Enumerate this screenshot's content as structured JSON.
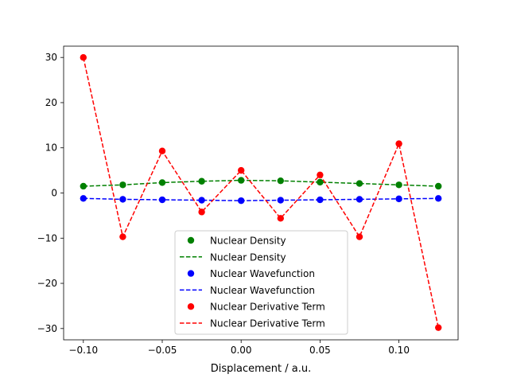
{
  "chart_data": {
    "type": "line",
    "title": "",
    "xlabel": "Displacement / a.u.",
    "ylabel": "",
    "xlim": [
      -0.1125,
      0.1375
    ],
    "ylim": [
      -32.5,
      32.5
    ],
    "grid": false,
    "legend_placement": "lower-center",
    "x_ticks": [
      -0.1,
      -0.05,
      0.0,
      0.05,
      0.1
    ],
    "x_tick_labels": [
      "−0.10",
      "−0.05",
      "0.00",
      "0.05",
      "0.10"
    ],
    "y_ticks": [
      30,
      20,
      10,
      0,
      -10,
      -20,
      -30
    ],
    "y_tick_labels": [
      "30",
      "20",
      "10",
      "0",
      "−10",
      "−20",
      "−30"
    ],
    "x": [
      -0.1,
      -0.075,
      -0.05,
      -0.025,
      0.0,
      0.025,
      0.05,
      0.075,
      0.1,
      0.125
    ],
    "series": [
      {
        "name": "Nuclear Density",
        "color": "#008000",
        "values": [
          1.5,
          1.8,
          2.3,
          2.6,
          2.8,
          2.7,
          2.4,
          2.1,
          1.8,
          1.5
        ]
      },
      {
        "name": "Nuclear Wavefunction",
        "color": "#0000ff",
        "values": [
          -1.2,
          -1.4,
          -1.5,
          -1.6,
          -1.7,
          -1.6,
          -1.5,
          -1.4,
          -1.3,
          -1.2
        ]
      },
      {
        "name": "Nuclear Derivative Term",
        "color": "#ff0000",
        "values": [
          30.0,
          -9.7,
          9.3,
          -4.2,
          5.0,
          -5.6,
          4.0,
          -9.7,
          10.9,
          -29.8
        ]
      }
    ],
    "legend_entries": [
      {
        "label": "Nuclear Density",
        "color": "#008000",
        "style": "marker"
      },
      {
        "label": "Nuclear Density",
        "color": "#008000",
        "style": "dashed"
      },
      {
        "label": "Nuclear Wavefunction",
        "color": "#0000ff",
        "style": "marker"
      },
      {
        "label": "Nuclear Wavefunction",
        "color": "#0000ff",
        "style": "dashed"
      },
      {
        "label": "Nuclear Derivative Term",
        "color": "#ff0000",
        "style": "marker"
      },
      {
        "label": "Nuclear Derivative Term",
        "color": "#ff0000",
        "style": "dashed"
      }
    ]
  }
}
